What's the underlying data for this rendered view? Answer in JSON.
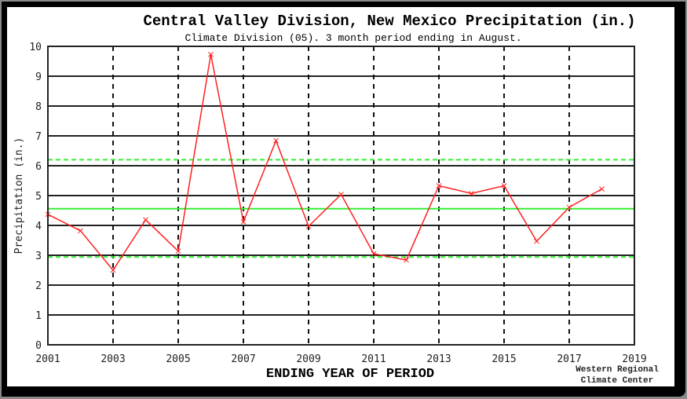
{
  "chart_data": {
    "type": "line",
    "title": "Central Valley Division, New Mexico  Precipitation (in.)",
    "subtitle": "Climate Division (05). 3 month period ending in August.",
    "xlabel": "ENDING YEAR OF PERIOD",
    "ylabel": "Precipitation (in.)",
    "credit": [
      "Western Regional",
      "Climate Center"
    ],
    "xlim": [
      2001,
      2019
    ],
    "ylim": [
      0,
      10
    ],
    "x_ticks": [
      2001,
      2003,
      2005,
      2007,
      2009,
      2011,
      2013,
      2015,
      2017,
      2019
    ],
    "y_ticks": [
      0,
      1,
      2,
      3,
      4,
      5,
      6,
      7,
      8,
      9,
      10
    ],
    "grid": {
      "horizontal": "solid",
      "vertical": "dashed"
    },
    "series": [
      {
        "name": "Precipitation",
        "color": "#ff2020",
        "marker": "x",
        "x": [
          2001,
          2002,
          2003,
          2004,
          2005,
          2006,
          2007,
          2008,
          2009,
          2010,
          2011,
          2012,
          2013,
          2014,
          2015,
          2016,
          2017,
          2018
        ],
        "values": [
          4.37,
          3.82,
          2.5,
          4.19,
          3.14,
          9.73,
          4.12,
          6.84,
          3.97,
          5.04,
          3.05,
          2.84,
          5.33,
          5.07,
          5.33,
          3.47,
          4.61,
          5.22
        ]
      }
    ],
    "reference_lines": [
      {
        "name": "mean",
        "value": 4.56,
        "style": "solid",
        "color": "#33ee33"
      },
      {
        "name": "upper",
        "value": 6.2,
        "style": "dashed",
        "color": "#33ee33"
      },
      {
        "name": "lower",
        "value": 2.94,
        "style": "dashed",
        "color": "#33ee33"
      }
    ]
  }
}
